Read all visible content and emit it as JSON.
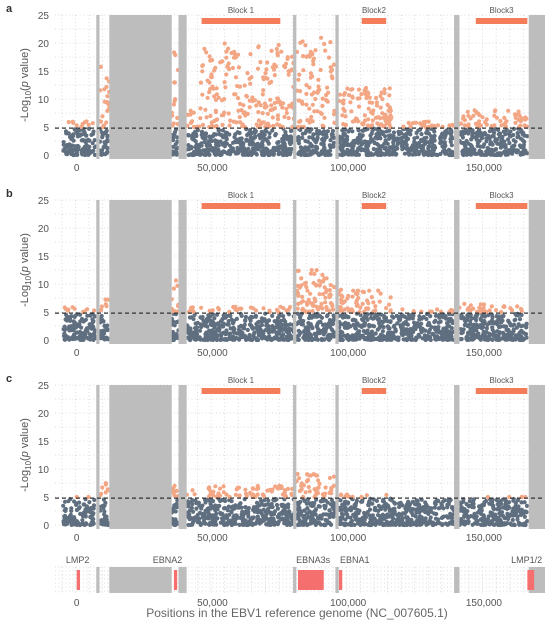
{
  "chart_data": {
    "type": "scatter",
    "xlabel": "Positions in the EBV1 reference genome (NC_007605.1)",
    "ylabel_prefix": "-Log",
    "ylabel_sub": "10",
    "ylabel_paren_open": "(",
    "ylabel_p": "p",
    "ylabel_suffix": " value)",
    "xlim": [
      -8000,
      172500
    ],
    "ylim": [
      0,
      25
    ],
    "x_ticks": [
      {
        "value": 0,
        "label": "0"
      },
      {
        "value": 50000,
        "label": "50,000"
      },
      {
        "value": 100000,
        "label": "100,000"
      },
      {
        "value": 150000,
        "label": "150,000"
      }
    ],
    "y_ticks": [
      {
        "value": 0,
        "label": "0"
      },
      {
        "value": 5,
        "label": "5"
      },
      {
        "value": 10,
        "label": "10"
      },
      {
        "value": 15,
        "label": "15"
      },
      {
        "value": 20,
        "label": "20"
      },
      {
        "value": 25,
        "label": "25"
      }
    ],
    "threshold": 4.8,
    "grid": true,
    "colors": {
      "significant": "#f3a684",
      "nonsignificant": "#5f6f80",
      "masked": "#bdbdbd",
      "block": "#f37d5a",
      "gene": "#f56f6f",
      "threshold": "#333333"
    },
    "masked_regions": [
      [
        7200,
        8400
      ],
      [
        12000,
        35000
      ],
      [
        37500,
        40500
      ],
      [
        79700,
        80900
      ],
      [
        95300,
        96500
      ],
      [
        139000,
        141000
      ],
      [
        166500,
        172500
      ]
    ],
    "blocks": [
      {
        "label": "Block 1",
        "start": 46000,
        "end": 75000
      },
      {
        "label": "Block2",
        "start": 105000,
        "end": 114000
      },
      {
        "label": "Block3",
        "start": 147000,
        "end": 166000
      }
    ],
    "panels": [
      {
        "label": "a",
        "density": [
          {
            "start": -5000,
            "end": 7000,
            "max": 6
          },
          {
            "start": 8500,
            "end": 12000,
            "max": 16
          },
          {
            "start": 35000,
            "end": 37500,
            "max": 19
          },
          {
            "start": 40500,
            "end": 45000,
            "max": 8
          },
          {
            "start": 45000,
            "end": 80000,
            "max": 20
          },
          {
            "start": 81000,
            "end": 86000,
            "max": 21
          },
          {
            "start": 86000,
            "end": 95000,
            "max": 21
          },
          {
            "start": 96500,
            "end": 116000,
            "max": 12
          },
          {
            "start": 116000,
            "end": 139000,
            "max": 6
          },
          {
            "start": 141000,
            "end": 166000,
            "max": 8
          }
        ]
      },
      {
        "label": "b",
        "density": [
          {
            "start": -5000,
            "end": 7000,
            "max": 6
          },
          {
            "start": 8500,
            "end": 12000,
            "max": 7.5
          },
          {
            "start": 35000,
            "end": 37500,
            "max": 11
          },
          {
            "start": 40500,
            "end": 80000,
            "max": 6
          },
          {
            "start": 81000,
            "end": 95000,
            "max": 12.5
          },
          {
            "start": 96500,
            "end": 116000,
            "max": 9
          },
          {
            "start": 116000,
            "end": 139000,
            "max": 5.5
          },
          {
            "start": 141000,
            "end": 166000,
            "max": 6.5
          }
        ]
      },
      {
        "label": "c",
        "density": [
          {
            "start": -5000,
            "end": 7000,
            "max": 5
          },
          {
            "start": 8500,
            "end": 12000,
            "max": 8
          },
          {
            "start": 35000,
            "end": 37500,
            "max": 9
          },
          {
            "start": 40500,
            "end": 80000,
            "max": 7
          },
          {
            "start": 81000,
            "end": 95000,
            "max": 9.2
          },
          {
            "start": 96500,
            "end": 116000,
            "max": 5.5
          },
          {
            "start": 116000,
            "end": 139000,
            "max": 4.5
          },
          {
            "start": 141000,
            "end": 166000,
            "max": 5
          }
        ]
      }
    ],
    "genes": [
      {
        "label": "LMP2",
        "start": 0,
        "end": 1200,
        "label_x": -4000
      },
      {
        "label": "EBNA2",
        "start": 35800,
        "end": 37000,
        "label_x": 28000
      },
      {
        "label": "EBNA3s",
        "start": 81500,
        "end": 91000,
        "label_x": 80800
      },
      {
        "label": "EBNA1",
        "start": 96600,
        "end": 97800,
        "label_x": 97000
      },
      {
        "label": "LMP1/2",
        "start": 166000,
        "end": 168500,
        "label_x": 160000
      }
    ]
  }
}
